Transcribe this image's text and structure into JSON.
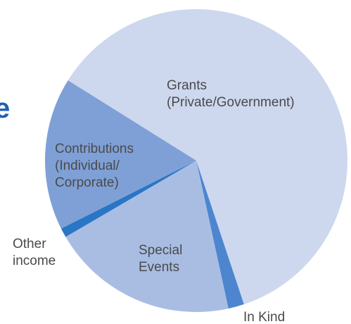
{
  "title_fragment": "e",
  "chart_data": {
    "type": "pie",
    "start_angle_deg": 212,
    "slices": [
      {
        "label": [
          "Grants",
          "(Private/Government)"
        ],
        "value": 61.0,
        "color": "#cdd8ef"
      },
      {
        "label": [
          "In Kind"
        ],
        "value": 1.7,
        "color": "#4d86cf"
      },
      {
        "label": [
          "Special",
          "Events"
        ],
        "value": 20.0,
        "color": "#a9bde3"
      },
      {
        "label": [
          "Other",
          "income"
        ],
        "value": 1.0,
        "color": "#2a76c6"
      },
      {
        "label": [
          "Contributions",
          "(Individual/",
          "Corporate)"
        ],
        "value": 16.3,
        "color": "#7fa0d6"
      }
    ]
  }
}
